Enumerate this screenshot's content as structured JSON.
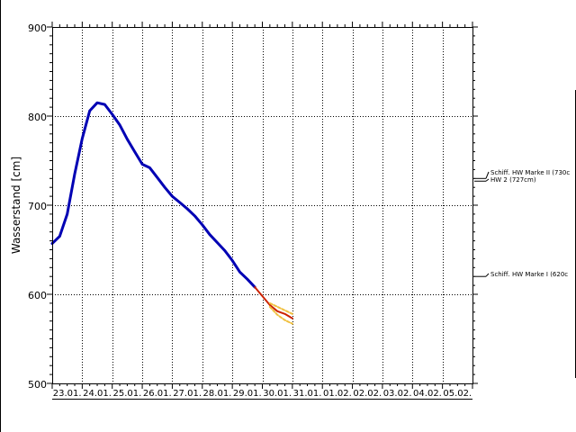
{
  "chart_data": {
    "type": "line",
    "ylabel": "Wasserstand [cm]",
    "xlabel": "",
    "title": "",
    "ylim": [
      500,
      900
    ],
    "x_axis": {
      "start": "23.01.",
      "end": "05.02.",
      "unit": "day"
    },
    "y_ticks": [
      500,
      600,
      700,
      800,
      900
    ],
    "x_tick_labels": [
      "23.01.",
      "24.01.",
      "25.01.",
      "26.01.",
      "27.01.",
      "28.01.",
      "29.01.",
      "30.01.",
      "31.01.",
      "01.02.",
      "02.02.",
      "03.02.",
      "04.02.",
      "05.02."
    ],
    "grid": true,
    "series": [
      {
        "role": "observed",
        "color": "#0000b4",
        "points": [
          [
            "23.01. 00:00",
            657
          ],
          [
            "23.01. 06:00",
            665
          ],
          [
            "23.01. 12:00",
            690
          ],
          [
            "23.01. 18:00",
            735
          ],
          [
            "24.01. 00:00",
            775
          ],
          [
            "24.01. 06:00",
            806
          ],
          [
            "24.01. 12:00",
            815
          ],
          [
            "24.01. 18:00",
            813
          ],
          [
            "25.01. 00:00",
            802
          ],
          [
            "25.01. 06:00",
            790
          ],
          [
            "25.01. 12:00",
            774
          ],
          [
            "25.01. 18:00",
            760
          ],
          [
            "26.01. 00:00",
            746
          ],
          [
            "26.01. 06:00",
            742
          ],
          [
            "26.01. 12:00",
            731
          ],
          [
            "26.01. 18:00",
            720
          ],
          [
            "27.01. 00:00",
            710
          ],
          [
            "27.01. 06:00",
            703
          ],
          [
            "27.01. 12:00",
            696
          ],
          [
            "27.01. 18:00",
            688
          ],
          [
            "28.01. 00:00",
            678
          ],
          [
            "28.01. 06:00",
            667
          ],
          [
            "28.01. 12:00",
            658
          ],
          [
            "28.01. 18:00",
            649
          ],
          [
            "29.01. 00:00",
            638
          ],
          [
            "29.01. 06:00",
            625
          ],
          [
            "29.01. 12:00",
            617
          ],
          [
            "29.01. 18:00",
            608
          ]
        ]
      },
      {
        "role": "forecast",
        "color": "#cc2200",
        "points": [
          [
            "29.01. 18:00",
            608
          ],
          [
            "30.01. 00:00",
            598
          ],
          [
            "30.01. 06:00",
            588
          ],
          [
            "30.01. 12:00",
            581
          ],
          [
            "30.01. 18:00",
            578
          ],
          [
            "31.01. 00:00",
            573
          ]
        ]
      },
      {
        "role": "forecast-range-upper",
        "color": "#f0c040",
        "points": [
          [
            "30.01. 06:00",
            590
          ],
          [
            "30.01. 12:00",
            586
          ],
          [
            "30.01. 18:00",
            582
          ],
          [
            "31.01. 00:00",
            578
          ]
        ]
      },
      {
        "role": "forecast-range-lower",
        "color": "#f0c040",
        "points": [
          [
            "30.01. 06:00",
            586
          ],
          [
            "30.01. 12:00",
            577
          ],
          [
            "30.01. 18:00",
            571
          ],
          [
            "31.01. 00:00",
            567
          ]
        ]
      }
    ],
    "reference_lines": [
      {
        "label": "Schiff. HW Marke II (730c",
        "value": 730
      },
      {
        "label": "HW 2 (727cm)",
        "value": 727
      },
      {
        "label": "Schiff. HW Marke I (620c",
        "value": 620
      }
    ]
  }
}
